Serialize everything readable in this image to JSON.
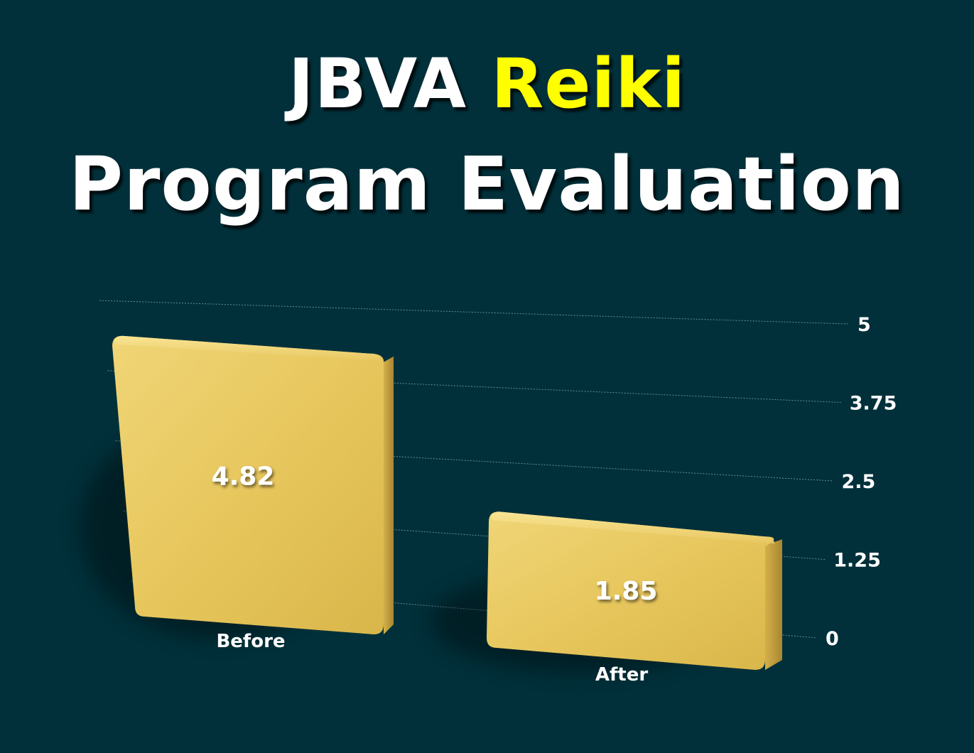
{
  "title": {
    "part1": "JBVA ",
    "accent": "Reiki",
    "line2": "Program Evaluation"
  },
  "colors": {
    "background": "#01303a",
    "title_accent": "#ffff00",
    "bar_fill": "#e6c35a",
    "text": "#ffffff"
  },
  "chart_data": {
    "type": "bar",
    "categories": [
      "Before",
      "After"
    ],
    "values": [
      4.82,
      1.85
    ],
    "data_labels": [
      "4.82",
      "1.85"
    ],
    "ylim": [
      0,
      5
    ],
    "yticks": [
      "0",
      "1.25",
      "2.5",
      "3.75",
      "5"
    ],
    "y_axis_side": "right",
    "grid": true,
    "legend": "none"
  }
}
